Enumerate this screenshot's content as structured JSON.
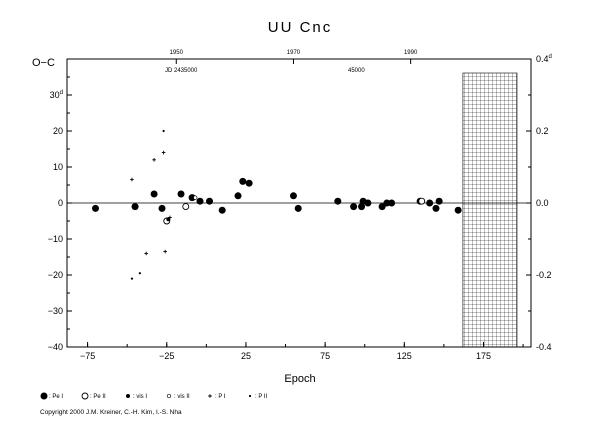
{
  "chart_data": {
    "type": "scatter",
    "title": "UU Cnc",
    "xlabel": "Epoch",
    "ylabel": "O−C",
    "ylabel_unit": "d",
    "y2label_unit": "d",
    "top_axis_label": "JD 2435000",
    "top_axis_jd_label": "45000",
    "xlim": [
      -88,
      205
    ],
    "ylim": [
      -40,
      40
    ],
    "y2lim": [
      -0.4,
      0.4
    ],
    "x_ticks": [
      -75,
      -25,
      25,
      75,
      125,
      175
    ],
    "y_ticks": [
      -40,
      -30,
      -20,
      -10,
      0,
      10,
      20,
      30
    ],
    "y_tick_top_label": "30",
    "y2_ticks": [
      -0.4,
      -0.2,
      0.0,
      0.2,
      0.4
    ],
    "y2_tick_labels": [
      "-0.4",
      "-0.2",
      "0.0",
      "0.2",
      "0.4"
    ],
    "top_year_ticks": [
      {
        "epoch": -19,
        "label": "1950"
      },
      {
        "epoch": 55,
        "label": "1970"
      },
      {
        "epoch": 129,
        "label": "1990"
      }
    ],
    "hatched_region_start_epoch": 162,
    "grid": false,
    "series": [
      {
        "name": "Pe I",
        "marker": "filled-circle-large",
        "points": [
          [
            -70,
            -1.5
          ],
          [
            -45,
            -1
          ],
          [
            -33,
            2.5
          ],
          [
            -28,
            -1.5
          ],
          [
            -16,
            2.5
          ],
          [
            -9,
            1.5
          ],
          [
            -4,
            0.5
          ],
          [
            2,
            0.5
          ],
          [
            10,
            -2
          ],
          [
            20,
            2
          ],
          [
            23,
            6
          ],
          [
            27,
            5.5
          ],
          [
            55,
            2
          ],
          [
            58,
            -1.5
          ],
          [
            83,
            0.5
          ],
          [
            93,
            -1
          ],
          [
            98,
            -1
          ],
          [
            99,
            0.5
          ],
          [
            102,
            0
          ],
          [
            111,
            -1
          ],
          [
            114,
            0
          ],
          [
            117,
            0
          ],
          [
            135,
            0.5
          ],
          [
            141,
            0
          ],
          [
            145,
            -1.5
          ],
          [
            147,
            0.5
          ],
          [
            159,
            -2
          ]
        ]
      },
      {
        "name": "Pe II",
        "marker": "open-circle-large",
        "points": [
          [
            -25,
            -5
          ],
          [
            -13,
            -1
          ],
          [
            136,
            0.5
          ]
        ]
      },
      {
        "name": "vis I",
        "marker": "filled-circle-small",
        "points": [
          [
            -24,
            -4.5
          ]
        ]
      },
      {
        "name": "vis II",
        "marker": "open-circle-small",
        "points": [
          [
            -7,
            1.5
          ]
        ]
      },
      {
        "name": "P I",
        "marker": "plus",
        "points": [
          [
            -47,
            6.5
          ],
          [
            -38,
            -14
          ],
          [
            -33,
            12
          ],
          [
            -27,
            14
          ],
          [
            -26,
            -13.5
          ],
          [
            -23,
            -4
          ]
        ]
      },
      {
        "name": "P II",
        "marker": "dot",
        "points": [
          [
            -47,
            -21
          ],
          [
            -42,
            -19.5
          ],
          [
            -27,
            20
          ]
        ]
      }
    ]
  },
  "legend": {
    "items": [
      {
        "label": ": Pe I",
        "marker": "filled-circle-large"
      },
      {
        "label": ": Pe II",
        "marker": "open-circle-large"
      },
      {
        "label": ": vis I",
        "marker": "filled-circle-small"
      },
      {
        "label": ": vis II",
        "marker": "open-circle-small"
      },
      {
        "label": ": P I",
        "marker": "plus"
      },
      {
        "label": ": P II",
        "marker": "dot"
      }
    ]
  },
  "copyright": "Copyright 2000 J.M. Kreiner, C.-H. Kim, I.-S. Nha"
}
